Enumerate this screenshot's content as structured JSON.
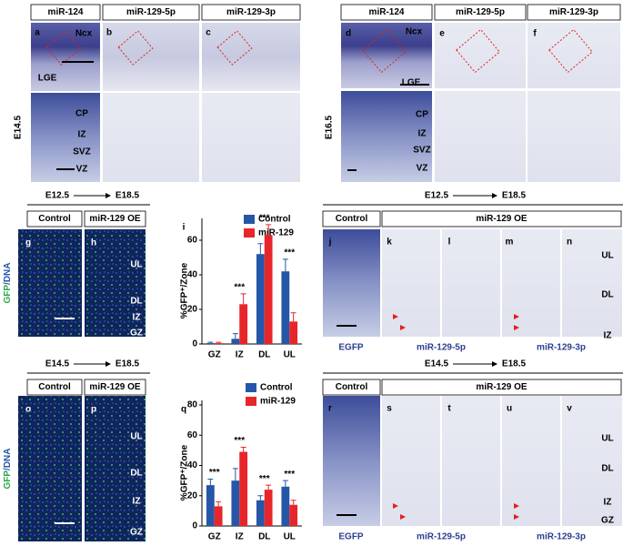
{
  "top_left": {
    "stage": "E14.5",
    "headers": [
      "miR-124",
      "miR-129-5p",
      "miR-129-3p"
    ],
    "panels": [
      "a",
      "b",
      "c"
    ],
    "regions": [
      "Ncx",
      "LGE"
    ],
    "zones": [
      "CP",
      "IZ",
      "SVZ",
      "VZ"
    ]
  },
  "top_right": {
    "stage": "E16.5",
    "headers": [
      "miR-124",
      "miR-129-5p",
      "miR-129-3p"
    ],
    "panels": [
      "d",
      "e",
      "f"
    ],
    "regions": [
      "Ncx",
      "LGE"
    ],
    "zones": [
      "CP",
      "IZ",
      "SVZ",
      "VZ"
    ]
  },
  "middle_left": {
    "timeline": {
      "from": "E12.5",
      "to": "E18.5"
    },
    "headers": [
      "Control",
      "miR-129 OE"
    ],
    "panels": [
      "g",
      "h"
    ],
    "stain": {
      "green": "GFP",
      "blue": "/DNA"
    },
    "zones": [
      "UL",
      "DL",
      "IZ",
      "GZ"
    ]
  },
  "middle_right": {
    "timeline": {
      "from": "E12.5",
      "to": "E18.5"
    },
    "headers": [
      "Control",
      "miR-129 OE"
    ],
    "panels": [
      "j",
      "k",
      "l",
      "m",
      "n"
    ],
    "probes": [
      "EGFP",
      "miR-129-5p",
      "miR-129-3p"
    ],
    "zones": [
      "UL",
      "DL",
      "IZ"
    ]
  },
  "bottom_left": {
    "timeline": {
      "from": "E14.5",
      "to": "E18.5"
    },
    "headers": [
      "Control",
      "miR-129 OE"
    ],
    "panels": [
      "o",
      "p"
    ],
    "stain": {
      "green": "GFP",
      "blue": "/DNA"
    },
    "zones": [
      "UL",
      "DL",
      "IZ",
      "GZ"
    ]
  },
  "bottom_right": {
    "timeline": {
      "from": "E14.5",
      "to": "E18.5"
    },
    "headers": [
      "Control",
      "miR-129 OE"
    ],
    "panels": [
      "r",
      "s",
      "t",
      "u",
      "v"
    ],
    "probes": [
      "EGFP",
      "miR-129-5p",
      "miR-129-3p"
    ],
    "zones": [
      "UL",
      "DL",
      "IZ",
      "GZ"
    ]
  },
  "chart_data": [
    {
      "type": "bar",
      "panel_label": "i",
      "ylabel": "%GFP⁺/Zone",
      "categories": [
        "GZ",
        "IZ",
        "DL",
        "UL"
      ],
      "series": [
        {
          "name": "Control",
          "color": "#2656a8",
          "values": [
            0.5,
            3,
            52,
            42
          ],
          "errors": [
            0.5,
            3,
            6,
            7
          ]
        },
        {
          "name": "miR-129",
          "color": "#e8262a",
          "values": [
            0.5,
            23,
            63,
            13
          ],
          "errors": [
            0.5,
            6,
            6,
            5
          ]
        }
      ],
      "ylim": [
        0,
        70
      ],
      "yticks": [
        0,
        20,
        40,
        60
      ],
      "annotations": [
        {
          "category": "IZ",
          "text": "***"
        },
        {
          "category": "DL",
          "text": "***"
        },
        {
          "category": "UL",
          "text": "***"
        }
      ]
    },
    {
      "type": "bar",
      "panel_label": "q",
      "ylabel": "%GFP⁺/Zone",
      "categories": [
        "GZ",
        "IZ",
        "DL",
        "UL"
      ],
      "series": [
        {
          "name": "Control",
          "color": "#2656a8",
          "values": [
            27,
            30,
            17,
            26
          ],
          "errors": [
            4,
            8,
            3,
            4
          ]
        },
        {
          "name": "miR-129",
          "color": "#e8262a",
          "values": [
            13,
            49,
            24,
            14
          ],
          "errors": [
            3,
            3,
            3,
            3
          ]
        }
      ],
      "ylim": [
        0,
        80
      ],
      "yticks": [
        0,
        20,
        40,
        60,
        80
      ],
      "annotations": [
        {
          "category": "GZ",
          "text": "***"
        },
        {
          "category": "IZ",
          "text": "***"
        },
        {
          "category": "DL",
          "text": "***"
        },
        {
          "category": "UL",
          "text": "***"
        }
      ]
    }
  ]
}
